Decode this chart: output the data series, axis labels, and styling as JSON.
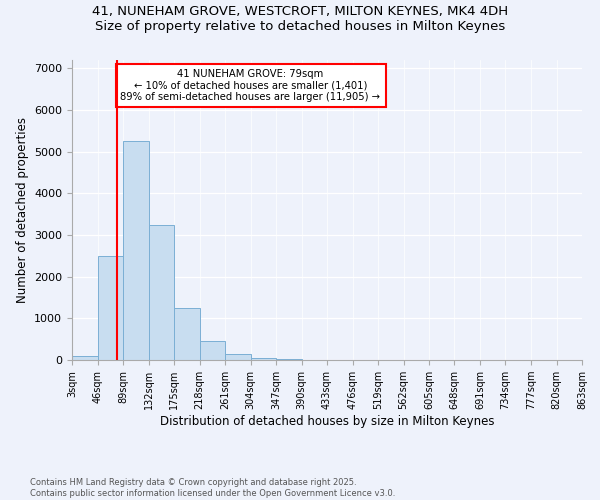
{
  "title_line1": "41, NUNEHAM GROVE, WESTCROFT, MILTON KEYNES, MK4 4DH",
  "title_line2": "Size of property relative to detached houses in Milton Keynes",
  "xlabel": "Distribution of detached houses by size in Milton Keynes",
  "ylabel": "Number of detached properties",
  "bar_color": "#c8ddf0",
  "bar_edgecolor": "#7bafd4",
  "vline_color": "red",
  "vline_x": 79,
  "annotation_title": "41 NUNEHAM GROVE: 79sqm",
  "annotation_line2": "← 10% of detached houses are smaller (1,401)",
  "annotation_line3": "89% of semi-detached houses are larger (11,905) →",
  "bin_edges": [
    3,
    46,
    89,
    132,
    175,
    218,
    261,
    304,
    347,
    390,
    433,
    476,
    519,
    562,
    605,
    648,
    691,
    734,
    777,
    820,
    863
  ],
  "bin_counts": [
    100,
    2500,
    5250,
    3250,
    1250,
    450,
    150,
    50,
    15,
    5,
    3,
    2,
    1,
    1,
    0,
    0,
    0,
    0,
    0,
    0
  ],
  "ylim": [
    0,
    7200
  ],
  "yticks": [
    0,
    1000,
    2000,
    3000,
    4000,
    5000,
    6000,
    7000
  ],
  "background_color": "#eef2fb",
  "footer_line1": "Contains HM Land Registry data © Crown copyright and database right 2025.",
  "footer_line2": "Contains public sector information licensed under the Open Government Licence v3.0."
}
